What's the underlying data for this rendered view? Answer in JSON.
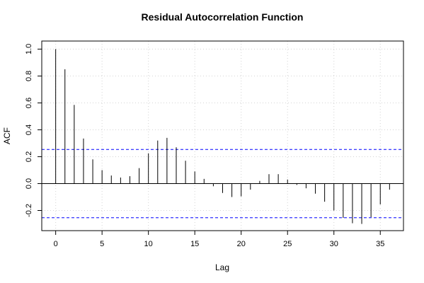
{
  "chart_data": {
    "type": "bar",
    "title": "Residual Autocorrelation Function",
    "xlabel": "Lag",
    "ylabel": "ACF",
    "xlim": [
      -1.5,
      37.5
    ],
    "ylim": [
      -0.35,
      1.06
    ],
    "xticks": [
      0,
      5,
      10,
      15,
      20,
      25,
      30,
      35
    ],
    "yticks": [
      -0.2,
      0.0,
      0.2,
      0.4,
      0.6,
      0.8,
      1.0
    ],
    "ytick_labels": [
      "-0.2",
      "0.0",
      "0.2",
      "0.4",
      "0.6",
      "0.8",
      "1.0"
    ],
    "grid": true,
    "lags": [
      0,
      1,
      2,
      3,
      4,
      5,
      6,
      7,
      8,
      9,
      10,
      11,
      12,
      13,
      14,
      15,
      16,
      17,
      18,
      19,
      20,
      21,
      22,
      23,
      24,
      25,
      26,
      27,
      28,
      29,
      30,
      31,
      32,
      33,
      34,
      35,
      36
    ],
    "values": [
      1.0,
      0.85,
      0.585,
      0.335,
      0.18,
      0.1,
      0.06,
      0.045,
      0.055,
      0.115,
      0.225,
      0.32,
      0.34,
      0.27,
      0.17,
      0.09,
      0.035,
      -0.02,
      -0.07,
      -0.1,
      -0.095,
      -0.045,
      0.02,
      0.07,
      0.07,
      0.03,
      -0.01,
      -0.035,
      -0.075,
      -0.135,
      -0.2,
      -0.255,
      -0.295,
      -0.3,
      -0.25,
      -0.155,
      -0.045
    ],
    "confidence_bounds": [
      0.254,
      -0.254
    ],
    "colors": {
      "bars": "#000000",
      "confidence": "#0000ff",
      "zero_line": "#000000",
      "grid": "#d3d3d3"
    }
  }
}
